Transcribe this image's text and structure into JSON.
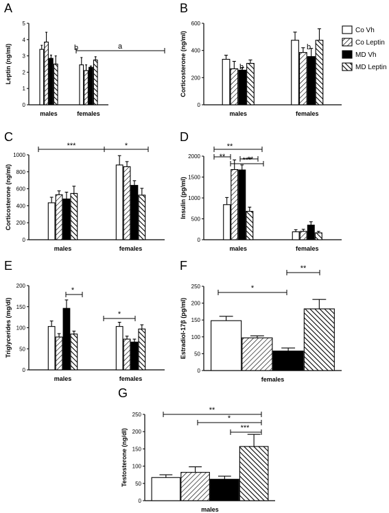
{
  "legend": {
    "entries": [
      {
        "label": "Co Vh",
        "style": "open"
      },
      {
        "label": "Co Leptin",
        "style": "hatch-light"
      },
      {
        "label": "MD Vh",
        "style": "solid"
      },
      {
        "label": "MD Leptin",
        "style": "hatch-heavy"
      }
    ]
  },
  "chart_data": [
    {
      "panel": "A",
      "type": "bar",
      "ylabel": "Leptin (ng/ml)",
      "ylim": [
        0,
        5
      ],
      "yticks": [
        "0",
        "1",
        "2",
        "3",
        "4",
        "5"
      ],
      "groups": [
        "males",
        "females"
      ],
      "series": [
        {
          "name": "Co Vh",
          "values": [
            3.4,
            2.45
          ],
          "errors": [
            0.25,
            0.45
          ]
        },
        {
          "name": "Co Leptin",
          "values": [
            3.85,
            2.1
          ],
          "errors": [
            0.6,
            0.35
          ]
        },
        {
          "name": "MD Vh",
          "values": [
            2.85,
            2.3
          ],
          "errors": [
            0.2,
            0.08
          ]
        },
        {
          "name": "MD Leptin",
          "values": [
            2.5,
            2.75
          ],
          "errors": [
            0.5,
            0.2
          ]
        }
      ],
      "annotations": [
        {
          "text": "b"
        },
        {
          "text": "a"
        }
      ]
    },
    {
      "panel": "B",
      "type": "bar",
      "ylabel": "Corticosterone (ng/ml)",
      "ylim": [
        0,
        600
      ],
      "yticks": [
        "0",
        "200",
        "400",
        "600"
      ],
      "groups": [
        "males",
        "females"
      ],
      "series": [
        {
          "name": "Co Vh",
          "values": [
            335,
            475
          ],
          "errors": [
            30,
            60
          ]
        },
        {
          "name": "Co Leptin",
          "values": [
            265,
            385
          ],
          "errors": [
            55,
            35
          ]
        },
        {
          "name": "MD Vh",
          "values": [
            255,
            355
          ],
          "errors": [
            20,
            60
          ]
        },
        {
          "name": "MD Leptin",
          "values": [
            305,
            475
          ],
          "errors": [
            25,
            85
          ]
        }
      ],
      "annotations": [
        {
          "text": "b"
        },
        {
          "text": "b"
        }
      ]
    },
    {
      "panel": "C",
      "type": "bar",
      "ylabel": "Corticosterone (ng/ml)",
      "ylim": [
        0,
        1000
      ],
      "yticks": [
        "0",
        "200",
        "400",
        "600",
        "800",
        "1000"
      ],
      "groups": [
        "males",
        "females"
      ],
      "series": [
        {
          "name": "Co Vh",
          "values": [
            435,
            880
          ],
          "errors": [
            65,
            110
          ]
        },
        {
          "name": "Co Leptin",
          "values": [
            530,
            860
          ],
          "errors": [
            45,
            60
          ]
        },
        {
          "name": "MD Vh",
          "values": [
            480,
            640
          ],
          "errors": [
            80,
            55
          ]
        },
        {
          "name": "MD Leptin",
          "values": [
            545,
            525
          ],
          "errors": [
            85,
            80
          ]
        }
      ],
      "annotations": [
        {
          "text": "***"
        },
        {
          "text": "*"
        }
      ]
    },
    {
      "panel": "D",
      "type": "bar",
      "ylabel": "Insulin (pg/ml)",
      "ylim": [
        0,
        2000
      ],
      "yticks": [
        "0",
        "500",
        "1000",
        "1500",
        "2000"
      ],
      "groups": [
        "males",
        "females"
      ],
      "series": [
        {
          "name": "Co Vh",
          "values": [
            840,
            190
          ],
          "errors": [
            170,
            50
          ]
        },
        {
          "name": "Co Leptin",
          "values": [
            1680,
            200
          ],
          "errors": [
            230,
            50
          ]
        },
        {
          "name": "MD Vh",
          "values": [
            1670,
            350
          ],
          "errors": [
            120,
            80
          ]
        },
        {
          "name": "MD Leptin",
          "values": [
            680,
            165
          ],
          "errors": [
            100,
            35
          ]
        }
      ],
      "annotations": [
        {
          "text": "**"
        },
        {
          "text": "**"
        },
        {
          "text": "***"
        },
        {
          "text": "**"
        }
      ]
    },
    {
      "panel": "E",
      "type": "bar",
      "ylabel": "Triglycerides (mg/dl)",
      "ylim": [
        0,
        200
      ],
      "yticks": [
        "0",
        "50",
        "100",
        "150",
        "200"
      ],
      "groups": [
        "males",
        "females"
      ],
      "series": [
        {
          "name": "Co Vh",
          "values": [
            103,
            103
          ],
          "errors": [
            13,
            10
          ]
        },
        {
          "name": "Co Leptin",
          "values": [
            78,
            73
          ],
          "errors": [
            8,
            7
          ]
        },
        {
          "name": "MD Vh",
          "values": [
            146,
            66
          ],
          "errors": [
            20,
            7
          ]
        },
        {
          "name": "MD Leptin",
          "values": [
            85,
            97
          ],
          "errors": [
            7,
            10
          ]
        }
      ],
      "annotations": [
        {
          "text": "*"
        },
        {
          "text": "*"
        }
      ]
    },
    {
      "panel": "F",
      "type": "bar",
      "ylabel": "Estradiol-17β (pg/ml)",
      "ylim": [
        0,
        250
      ],
      "yticks": [
        "0",
        "50",
        "100",
        "150",
        "200",
        "250"
      ],
      "groups": [
        "females"
      ],
      "series": [
        {
          "name": "Co Vh",
          "values": [
            148
          ],
          "errors": [
            13
          ]
        },
        {
          "name": "Co Leptin",
          "values": [
            97
          ],
          "errors": [
            6
          ]
        },
        {
          "name": "MD Vh",
          "values": [
            58
          ],
          "errors": [
            9
          ]
        },
        {
          "name": "MD Leptin",
          "values": [
            183
          ],
          "errors": [
            28
          ]
        }
      ],
      "annotations": [
        {
          "text": "*"
        },
        {
          "text": "**"
        }
      ]
    },
    {
      "panel": "G",
      "type": "bar",
      "ylabel": "Testosterone (ng/dl)",
      "ylim": [
        0,
        250
      ],
      "yticks": [
        "0",
        "50",
        "100",
        "150",
        "200",
        "250"
      ],
      "groups": [
        "males"
      ],
      "series": [
        {
          "name": "Co Vh",
          "values": [
            67
          ],
          "errors": [
            8
          ]
        },
        {
          "name": "Co Leptin",
          "values": [
            82
          ],
          "errors": [
            16
          ]
        },
        {
          "name": "MD Vh",
          "values": [
            62
          ],
          "errors": [
            9
          ]
        },
        {
          "name": "MD Leptin",
          "values": [
            157
          ],
          "errors": [
            35
          ]
        }
      ],
      "annotations": [
        {
          "text": "**"
        },
        {
          "text": "*"
        },
        {
          "text": "***"
        }
      ]
    }
  ]
}
